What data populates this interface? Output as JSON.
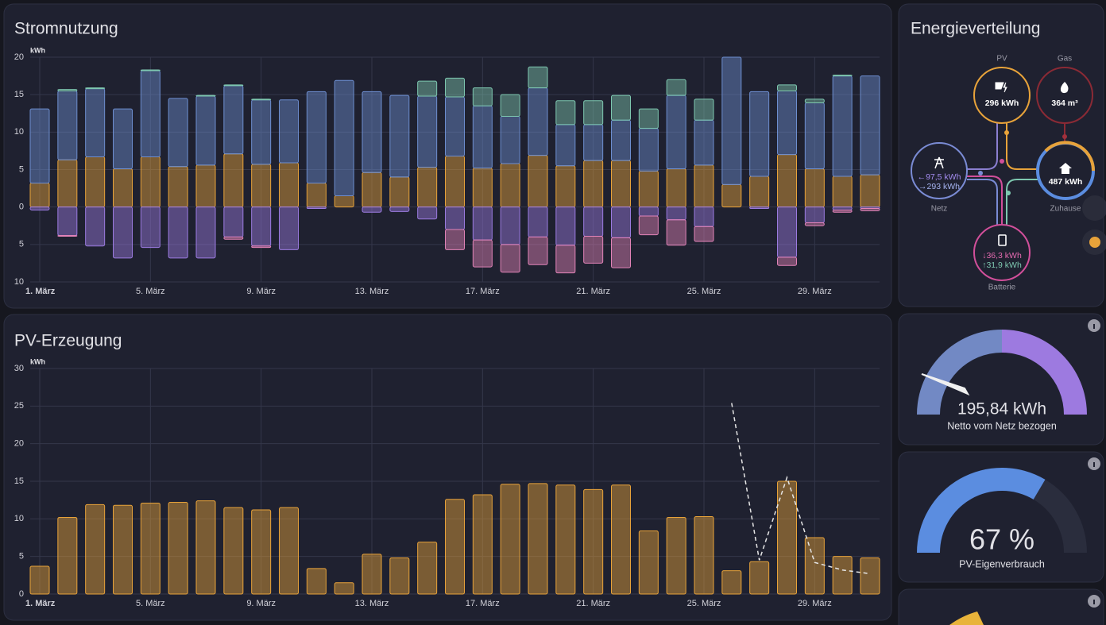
{
  "chart_data": [
    {
      "type": "bar",
      "stacked": true,
      "title": "Stromnutzung",
      "unit": "kWh",
      "categories": [
        "1. März",
        null,
        null,
        null,
        "5. März",
        null,
        null,
        null,
        "9. März",
        null,
        null,
        null,
        "13. März",
        null,
        null,
        null,
        "17. März",
        null,
        null,
        null,
        "21. März",
        null,
        null,
        null,
        "25. März",
        null,
        null,
        null,
        "29. März",
        null,
        null
      ],
      "series": [
        {
          "color": "#e8a33a",
          "values": [
            3.2,
            6.3,
            6.7,
            5.1,
            6.7,
            5.4,
            5.6,
            7.1,
            5.7,
            5.9,
            3.2,
            1.5,
            4.6,
            4.0,
            5.3,
            6.8,
            5.2,
            5.8,
            6.9,
            5.5,
            6.2,
            6.2,
            4.8,
            5.1,
            5.6,
            3.0,
            4.1,
            7.0,
            5.1,
            4.1,
            4.3
          ]
        },
        {
          "color": "#6d8ed0",
          "values": [
            9.9,
            9.2,
            9.1,
            8.0,
            11.5,
            9.1,
            9.2,
            9.1,
            8.6,
            8.4,
            12.2,
            15.4,
            10.8,
            10.9,
            9.5,
            7.9,
            8.3,
            6.3,
            9.0,
            5.5,
            4.8,
            5.4,
            5.7,
            9.8,
            6.0,
            17.0,
            11.3,
            8.5,
            8.8,
            13.4,
            13.2
          ]
        },
        {
          "color": "#7ec8b0",
          "values": [
            0,
            0.2,
            0.1,
            0,
            0.1,
            0,
            0.1,
            0.1,
            0.1,
            0,
            0,
            0,
            0,
            0,
            2.0,
            2.5,
            2.4,
            2.9,
            2.8,
            3.2,
            3.2,
            3.3,
            2.6,
            2.1,
            2.8,
            0,
            0,
            0.8,
            0.5,
            0.1,
            0
          ]
        },
        {
          "color": "#9b7be0",
          "values": [
            -0.4,
            -3.8,
            -5.2,
            -6.8,
            -5.4,
            -6.8,
            -6.8,
            -4.0,
            -5.2,
            -5.7,
            -0.2,
            0,
            -0.7,
            -0.6,
            -1.6,
            -3.0,
            -4.4,
            -5.0,
            -4.0,
            -5.1,
            -3.9,
            -4.1,
            -1.2,
            -1.7,
            -2.6,
            0,
            -0.2,
            -6.7,
            -2.1,
            -0.4,
            -0.2
          ]
        },
        {
          "color": "#e283b8",
          "values": [
            0,
            -0.1,
            0,
            0,
            0,
            0,
            0,
            -0.3,
            -0.2,
            0,
            0,
            0,
            0,
            0,
            0,
            -2.7,
            -3.6,
            -3.7,
            -3.7,
            -3.7,
            -3.6,
            -4.0,
            -2.5,
            -3.4,
            -2.0,
            0,
            0,
            -1.1,
            -0.4,
            -0.3,
            -0.3
          ]
        }
      ],
      "ylim": [
        -10,
        20
      ],
      "yticks": [
        {
          "value": -10,
          "label": "10"
        },
        {
          "value": -5,
          "label": "5"
        },
        0,
        5,
        10,
        15,
        20
      ],
      "grid": true
    },
    {
      "type": "bar",
      "title": "PV-Erzeugung",
      "unit": "kWh",
      "categories": [
        "1. März",
        null,
        null,
        null,
        "5. März",
        null,
        null,
        null,
        "9. März",
        null,
        null,
        null,
        "13. März",
        null,
        null,
        null,
        "17. März",
        null,
        null,
        null,
        "21. März",
        null,
        null,
        null,
        "25. März",
        null,
        null,
        null,
        "29. März",
        null,
        null
      ],
      "series": [
        {
          "color": "#e8a33a",
          "values": [
            3.7,
            10.2,
            11.9,
            11.8,
            12.1,
            12.2,
            12.4,
            11.5,
            11.2,
            11.5,
            3.4,
            1.5,
            5.3,
            4.8,
            6.9,
            12.6,
            13.2,
            14.6,
            14.7,
            14.5,
            13.9,
            14.5,
            8.4,
            10.2,
            10.3,
            3.1,
            4.3,
            15.0,
            7.5,
            5.0,
            4.8
          ]
        },
        {
          "type": "line",
          "dashed": true,
          "color": "#e6e6e6",
          "values": [
            null,
            null,
            null,
            null,
            null,
            null,
            null,
            null,
            null,
            null,
            null,
            null,
            null,
            null,
            null,
            null,
            null,
            null,
            null,
            null,
            null,
            null,
            null,
            null,
            null,
            25.4,
            4.5,
            15.5,
            4.2,
            3.2,
            2.7
          ]
        }
      ],
      "ylim": [
        0,
        30
      ],
      "yticks": [
        0,
        5,
        10,
        15,
        20,
        25,
        30
      ],
      "grid": true
    }
  ],
  "energy_distribution": {
    "title": "Energieverteilung",
    "pv": {
      "label": "PV",
      "value": "296 kWh"
    },
    "gas": {
      "label": "Gas",
      "value": "364 m³"
    },
    "grid": {
      "label": "Netz",
      "in": "←97,5 kWh",
      "out": "→293 kWh"
    },
    "home": {
      "label": "Zuhause",
      "value": "487 kWh"
    },
    "battery": {
      "label": "Batterie",
      "in": "↓36,3 kWh",
      "out": "↑31,9 kWh"
    }
  },
  "gauges": [
    {
      "value_label": "195,84 kWh",
      "name": "Netto vom Netz bezogen"
    },
    {
      "value": 67,
      "value_label": "67 %",
      "name": "PV-Eigenverbrauch"
    }
  ]
}
